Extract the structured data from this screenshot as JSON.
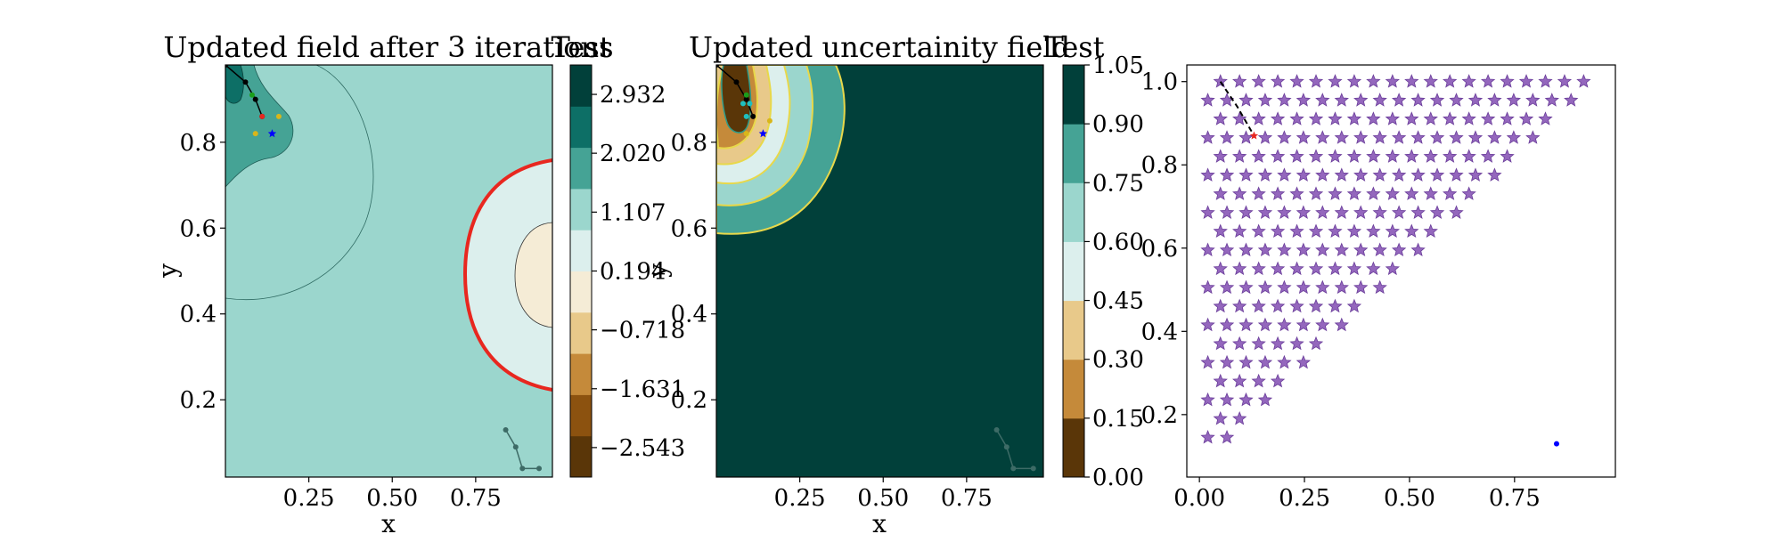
{
  "chart_data": [
    {
      "type": "heatmap",
      "title": "Updated field after 3 iterations",
      "colorbar_label": "Test",
      "xlabel": "x",
      "ylabel": "y",
      "xlim": [
        0.0,
        0.98
      ],
      "ylim": [
        0.02,
        0.98
      ],
      "x_ticks": [
        "0.25",
        "0.50",
        "0.75"
      ],
      "x_tick_values": [
        0.25,
        0.5,
        0.75
      ],
      "y_ticks": [
        "0.2",
        "0.4",
        "0.6",
        "0.8"
      ],
      "y_tick_values": [
        0.2,
        0.4,
        0.6,
        0.8
      ],
      "colorbar_ticks": [
        "2.932",
        "2.020",
        "1.107",
        "0.194",
        "−0.718",
        "−1.631",
        "−2.543"
      ],
      "colorbar_tick_values": [
        2.932,
        2.02,
        1.107,
        0.194,
        -0.718,
        -1.631,
        -2.543
      ],
      "colorbar_range": [
        -3.0,
        3.388
      ],
      "colorbar_colors": [
        "#5a3608",
        "#8c520f",
        "#c58a3a",
        "#e8c98a",
        "#f5ecd6",
        "#dcefed",
        "#9bd6cd",
        "#45a395",
        "#0d6f66",
        "#01403a"
      ],
      "background_level_color": "#9bd6cd",
      "markers": [
        {
          "x": 0.14,
          "y": 0.82,
          "color": "#0000ff",
          "shape": "star"
        },
        {
          "x": 0.11,
          "y": 0.86,
          "color": "#e8271f",
          "shape": "dot"
        },
        {
          "x": 0.08,
          "y": 0.91,
          "color": "#1a9e1a",
          "shape": "dot"
        },
        {
          "x": 0.09,
          "y": 0.82,
          "color": "#d9b61a",
          "shape": "dot"
        },
        {
          "x": 0.16,
          "y": 0.86,
          "color": "#d9b61a",
          "shape": "dot"
        }
      ],
      "trajectory_top": [
        {
          "x": 0.0,
          "y": 0.98
        },
        {
          "x": 0.06,
          "y": 0.94
        },
        {
          "x": 0.09,
          "y": 0.9
        },
        {
          "x": 0.11,
          "y": 0.86
        }
      ],
      "trajectory_bottom": [
        {
          "x": 0.84,
          "y": 0.13
        },
        {
          "x": 0.87,
          "y": 0.09
        },
        {
          "x": 0.89,
          "y": 0.04
        },
        {
          "x": 0.94,
          "y": 0.04
        }
      ]
    },
    {
      "type": "heatmap",
      "title": "Updated uncertainity field",
      "colorbar_label": "Test",
      "xlabel": "x",
      "ylabel": "y",
      "xlim": [
        0.0,
        0.98
      ],
      "ylim": [
        0.02,
        0.98
      ],
      "x_ticks": [
        "0.25",
        "0.50",
        "0.75"
      ],
      "x_tick_values": [
        0.25,
        0.5,
        0.75
      ],
      "y_ticks": [
        "0.2",
        "0.4",
        "0.6",
        "0.8"
      ],
      "y_tick_values": [
        0.2,
        0.4,
        0.6,
        0.8
      ],
      "colorbar_ticks": [
        "1.05",
        "0.90",
        "0.75",
        "0.60",
        "0.45",
        "0.30",
        "0.15",
        "0.00"
      ],
      "colorbar_tick_values": [
        1.05,
        0.9,
        0.75,
        0.6,
        0.45,
        0.3,
        0.15,
        0.0
      ],
      "colorbar_range": [
        0.0,
        1.05
      ],
      "colorbar_colors": [
        "#5a3608",
        "#c58a3a",
        "#e8c98a",
        "#dcefed",
        "#9bd6cd",
        "#45a395",
        "#01403a"
      ],
      "background_level_color": "#01403a",
      "markers": [
        {
          "x": 0.14,
          "y": 0.82,
          "color": "#0000ff",
          "shape": "star"
        },
        {
          "x": 0.09,
          "y": 0.91,
          "color": "#1a9e1a",
          "shape": "dot"
        },
        {
          "x": 0.08,
          "y": 0.89,
          "color": "#1fbfbf",
          "shape": "dot"
        },
        {
          "x": 0.1,
          "y": 0.89,
          "color": "#1fbfbf",
          "shape": "dot"
        },
        {
          "x": 0.09,
          "y": 0.86,
          "color": "#1fbfbf",
          "shape": "dot"
        },
        {
          "x": 0.09,
          "y": 0.82,
          "color": "#d9b61a",
          "shape": "dot"
        },
        {
          "x": 0.16,
          "y": 0.85,
          "color": "#d9b61a",
          "shape": "dot"
        }
      ],
      "trajectory_top": [
        {
          "x": 0.0,
          "y": 0.98
        },
        {
          "x": 0.06,
          "y": 0.94
        },
        {
          "x": 0.09,
          "y": 0.9
        },
        {
          "x": 0.11,
          "y": 0.86
        }
      ],
      "trajectory_bottom": [
        {
          "x": 0.84,
          "y": 0.13
        },
        {
          "x": 0.87,
          "y": 0.09
        },
        {
          "x": 0.89,
          "y": 0.04
        },
        {
          "x": 0.95,
          "y": 0.04
        }
      ]
    },
    {
      "type": "scatter",
      "xlim": [
        -0.03,
        0.99
      ],
      "ylim": [
        0.05,
        1.04
      ],
      "x_ticks": [
        "0.00",
        "0.25",
        "0.50",
        "0.75"
      ],
      "x_tick_values": [
        0.0,
        0.25,
        0.5,
        0.75
      ],
      "y_ticks": [
        "0.2",
        "0.4",
        "0.6",
        "0.8",
        "1.0"
      ],
      "y_tick_values": [
        0.2,
        0.4,
        0.6,
        0.8,
        1.0
      ],
      "grid_points": {
        "shape": "star",
        "color": "#9467bd",
        "edge_color": "#6a3d9a",
        "rule": "triangular lattice below the line x + y = 1"
      },
      "extra_points": [
        {
          "x": 0.85,
          "y": 0.13,
          "color": "#0000ff",
          "shape": "dot"
        },
        {
          "x": 0.13,
          "y": 0.87,
          "color": "#e8271f",
          "shape": "star"
        }
      ],
      "trajectory": [
        {
          "x": 0.05,
          "y": 1.0
        },
        {
          "x": 0.09,
          "y": 0.94
        },
        {
          "x": 0.13,
          "y": 0.87
        }
      ]
    }
  ]
}
